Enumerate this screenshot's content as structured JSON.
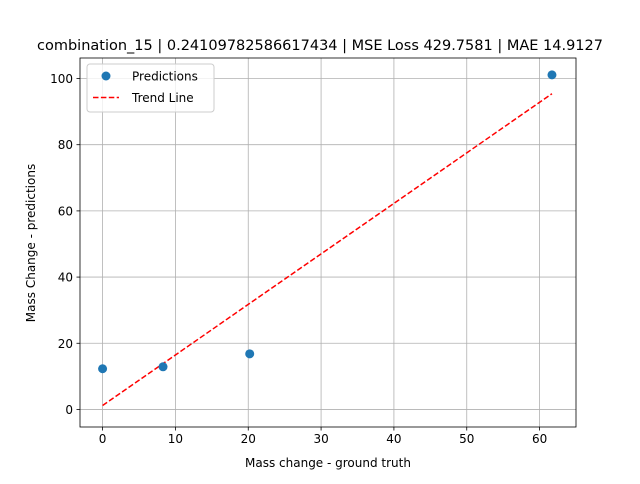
{
  "chart_data": {
    "type": "scatter",
    "title": "combination_15 | 0.24109782586617434 | MSE Loss 429.7581 | MAE 14.9127",
    "xlabel": "Mass change - ground truth",
    "ylabel": "Mass Change - predictions",
    "xlim": [
      -3.1,
      65.0
    ],
    "ylim": [
      -5.3,
      106.2
    ],
    "x_ticks": [
      0,
      10,
      20,
      30,
      40,
      50,
      60
    ],
    "y_ticks": [
      0,
      20,
      40,
      60,
      80,
      100
    ],
    "grid": true,
    "legend_position": "top-left",
    "series": [
      {
        "name": "Predictions",
        "kind": "scatter",
        "color": "#1f77b4",
        "points": [
          {
            "x": 0.0,
            "y": 12.3
          },
          {
            "x": 8.3,
            "y": 12.9
          },
          {
            "x": 20.2,
            "y": 16.8
          },
          {
            "x": 61.7,
            "y": 101.1
          }
        ]
      },
      {
        "name": "Trend Line",
        "kind": "line",
        "style": "dashed",
        "color": "#ff0000",
        "points": [
          {
            "x": 0.0,
            "y": 1.2
          },
          {
            "x": 61.7,
            "y": 95.4
          }
        ]
      }
    ]
  }
}
